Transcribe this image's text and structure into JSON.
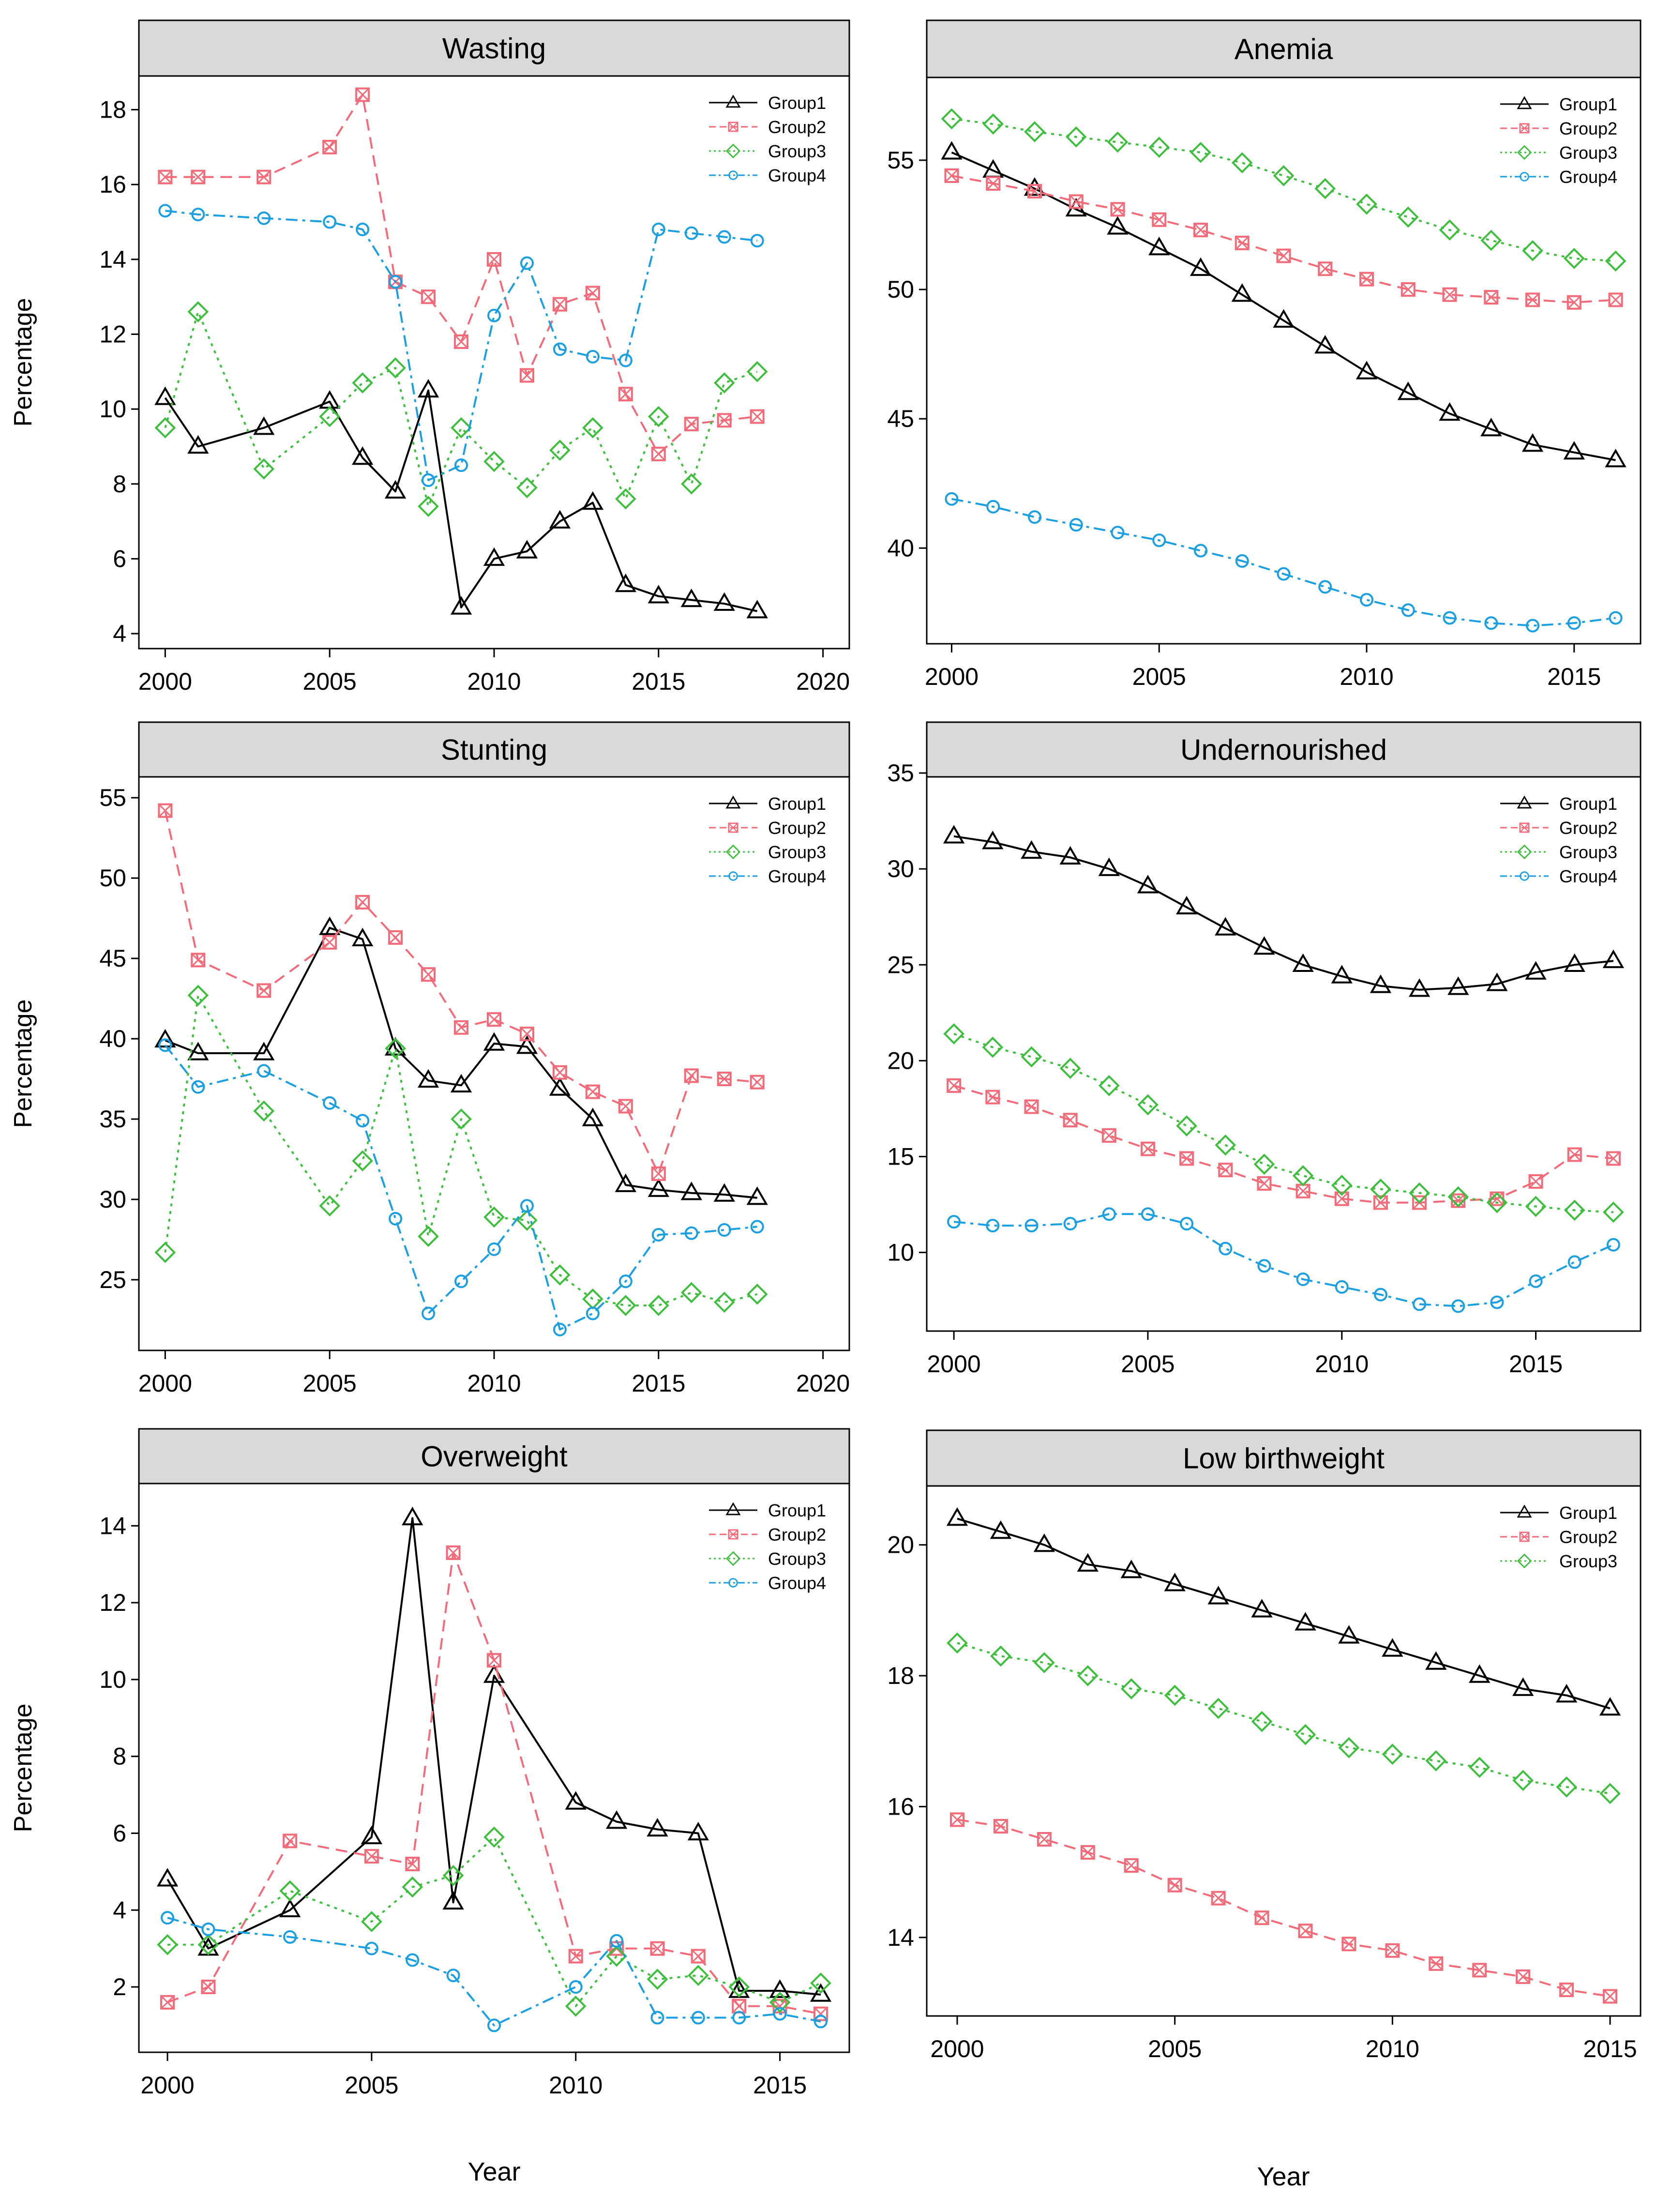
{
  "figure": {
    "y_label": "Percentage",
    "x_label": "Year",
    "series_styles": [
      {
        "name": "Group1",
        "color": "#000000",
        "dash": "",
        "marker": "triangle"
      },
      {
        "name": "Group2",
        "color": "#F36A78",
        "dash": "24,14",
        "marker": "square-x"
      },
      {
        "name": "Group3",
        "color": "#3DBF3D",
        "dash": "6,10",
        "marker": "diamond"
      },
      {
        "name": "Group4",
        "color": "#1A9FE0",
        "dash": "24,10,6,10",
        "marker": "circle"
      }
    ]
  },
  "chart_data": [
    {
      "type": "line",
      "title": "Wasting",
      "xlim": [
        1999.2,
        2020.8
      ],
      "ylim": [
        3.6,
        18.9
      ],
      "xticks": [
        2000,
        2005,
        2010,
        2015,
        2020
      ],
      "yticks": [
        4,
        6,
        8,
        10,
        12,
        14,
        16,
        18
      ],
      "legend": [
        "Group1",
        "Group2",
        "Group3",
        "Group4"
      ],
      "series": [
        {
          "name": "Group1",
          "x": [
            2000,
            2001,
            2003,
            2005,
            2006,
            2007,
            2008,
            2009,
            2010,
            2011,
            2012,
            2013,
            2014,
            2015,
            2016,
            2017,
            2018
          ],
          "y": [
            10.3,
            9.0,
            9.5,
            10.2,
            8.7,
            7.8,
            10.5,
            4.7,
            6.0,
            6.2,
            7.0,
            7.5,
            5.3,
            5.0,
            4.9,
            4.8,
            4.6
          ]
        },
        {
          "name": "Group2",
          "x": [
            2000,
            2001,
            2003,
            2005,
            2006,
            2007,
            2008,
            2009,
            2010,
            2011,
            2012,
            2013,
            2014,
            2015,
            2016,
            2017,
            2018
          ],
          "y": [
            16.2,
            16.2,
            16.2,
            17.0,
            18.4,
            13.4,
            13.0,
            11.8,
            14.0,
            10.9,
            12.8,
            13.1,
            10.4,
            8.8,
            9.6,
            9.7,
            9.8
          ]
        },
        {
          "name": "Group3",
          "x": [
            2000,
            2001,
            2003,
            2005,
            2006,
            2007,
            2008,
            2009,
            2010,
            2011,
            2012,
            2013,
            2014,
            2015,
            2016,
            2017,
            2018
          ],
          "y": [
            9.5,
            12.6,
            8.4,
            9.8,
            10.7,
            11.1,
            7.4,
            9.5,
            8.6,
            7.9,
            8.9,
            9.5,
            7.6,
            9.8,
            8.0,
            10.7,
            11.0
          ]
        },
        {
          "name": "Group4",
          "x": [
            2000,
            2001,
            2003,
            2005,
            2006,
            2007,
            2008,
            2009,
            2010,
            2011,
            2012,
            2013,
            2014,
            2015,
            2016,
            2017,
            2018
          ],
          "y": [
            15.3,
            15.2,
            15.1,
            15.0,
            14.8,
            13.4,
            8.1,
            8.5,
            12.5,
            13.9,
            11.6,
            11.4,
            11.3,
            14.8,
            14.7,
            14.6,
            14.5
          ]
        }
      ]
    },
    {
      "type": "line",
      "title": "Anemia",
      "xlim": [
        1999.4,
        2016.6
      ],
      "ylim": [
        36.3,
        58.2
      ],
      "xticks": [
        2000,
        2005,
        2010,
        2015
      ],
      "yticks": [
        40,
        45,
        50,
        55
      ],
      "legend": [
        "Group1",
        "Group2",
        "Group3",
        "Group4"
      ],
      "series": [
        {
          "name": "Group1",
          "x": [
            2000,
            2001,
            2002,
            2003,
            2004,
            2005,
            2006,
            2007,
            2008,
            2009,
            2010,
            2011,
            2012,
            2013,
            2014,
            2015,
            2016
          ],
          "y": [
            55.3,
            54.6,
            53.9,
            53.1,
            52.4,
            51.6,
            50.8,
            49.8,
            48.8,
            47.8,
            46.8,
            46.0,
            45.2,
            44.6,
            44.0,
            43.7,
            43.4
          ]
        },
        {
          "name": "Group2",
          "x": [
            2000,
            2001,
            2002,
            2003,
            2004,
            2005,
            2006,
            2007,
            2008,
            2009,
            2010,
            2011,
            2012,
            2013,
            2014,
            2015,
            2016
          ],
          "y": [
            54.4,
            54.1,
            53.8,
            53.4,
            53.1,
            52.7,
            52.3,
            51.8,
            51.3,
            50.8,
            50.4,
            50.0,
            49.8,
            49.7,
            49.6,
            49.5,
            49.6
          ]
        },
        {
          "name": "Group3",
          "x": [
            2000,
            2001,
            2002,
            2003,
            2004,
            2005,
            2006,
            2007,
            2008,
            2009,
            2010,
            2011,
            2012,
            2013,
            2014,
            2015,
            2016
          ],
          "y": [
            56.6,
            56.4,
            56.1,
            55.9,
            55.7,
            55.5,
            55.3,
            54.9,
            54.4,
            53.9,
            53.3,
            52.8,
            52.3,
            51.9,
            51.5,
            51.2,
            51.1
          ]
        },
        {
          "name": "Group4",
          "x": [
            2000,
            2001,
            2002,
            2003,
            2004,
            2005,
            2006,
            2007,
            2008,
            2009,
            2010,
            2011,
            2012,
            2013,
            2014,
            2015,
            2016
          ],
          "y": [
            41.9,
            41.6,
            41.2,
            40.9,
            40.6,
            40.3,
            39.9,
            39.5,
            39.0,
            38.5,
            38.0,
            37.6,
            37.3,
            37.1,
            37.0,
            37.1,
            37.3
          ]
        }
      ]
    },
    {
      "type": "line",
      "title": "Stunting",
      "xlim": [
        1999.2,
        2020.8
      ],
      "ylim": [
        20.6,
        56.3
      ],
      "xticks": [
        2000,
        2005,
        2010,
        2015,
        2020
      ],
      "yticks": [
        25,
        30,
        35,
        40,
        45,
        50,
        55
      ],
      "legend": [
        "Group1",
        "Group2",
        "Group3",
        "Group4"
      ],
      "series": [
        {
          "name": "Group1",
          "x": [
            2000,
            2001,
            2003,
            2005,
            2006,
            2007,
            2008,
            2009,
            2010,
            2011,
            2012,
            2013,
            2014,
            2015,
            2016,
            2017,
            2018
          ],
          "y": [
            39.9,
            39.1,
            39.1,
            46.9,
            46.2,
            39.4,
            37.4,
            37.1,
            39.7,
            39.5,
            36.9,
            35.0,
            30.9,
            30.6,
            30.4,
            30.3,
            30.1
          ]
        },
        {
          "name": "Group2",
          "x": [
            2000,
            2001,
            2003,
            2005,
            2006,
            2007,
            2008,
            2009,
            2010,
            2011,
            2012,
            2013,
            2014,
            2015,
            2016,
            2017,
            2018
          ],
          "y": [
            54.2,
            44.9,
            43.0,
            46.0,
            48.5,
            46.3,
            44.0,
            40.7,
            41.2,
            40.3,
            37.9,
            36.7,
            35.8,
            31.6,
            37.7,
            37.5,
            37.3
          ]
        },
        {
          "name": "Group3",
          "x": [
            2000,
            2001,
            2003,
            2005,
            2006,
            2007,
            2008,
            2009,
            2010,
            2011,
            2012,
            2013,
            2014,
            2015,
            2016,
            2017,
            2018
          ],
          "y": [
            26.7,
            42.7,
            35.5,
            29.6,
            32.4,
            39.4,
            27.7,
            35.0,
            28.9,
            28.7,
            25.3,
            23.8,
            23.4,
            23.4,
            24.2,
            23.6,
            24.1
          ]
        },
        {
          "name": "Group4",
          "x": [
            2000,
            2001,
            2003,
            2005,
            2006,
            2007,
            2008,
            2009,
            2010,
            2011,
            2012,
            2013,
            2014,
            2015,
            2016,
            2017,
            2018
          ],
          "y": [
            39.6,
            37.0,
            38.0,
            36.0,
            34.9,
            28.8,
            22.9,
            24.9,
            26.9,
            29.6,
            21.9,
            22.9,
            24.9,
            27.8,
            27.9,
            28.1,
            28.3
          ]
        }
      ]
    },
    {
      "type": "line",
      "title": "Undernourished",
      "xlim": [
        1999.3,
        2017.7
      ],
      "ylim": [
        5.9,
        34.8
      ],
      "xticks": [
        2000,
        2005,
        2010,
        2015
      ],
      "yticks": [
        10,
        15,
        20,
        25,
        30,
        35
      ],
      "legend": [
        "Group1",
        "Group2",
        "Group3",
        "Group4"
      ],
      "series": [
        {
          "name": "Group1",
          "x": [
            2000,
            2001,
            2002,
            2003,
            2004,
            2005,
            2006,
            2007,
            2008,
            2009,
            2010,
            2011,
            2012,
            2013,
            2014,
            2015,
            2016,
            2017
          ],
          "y": [
            31.7,
            31.4,
            30.9,
            30.6,
            30.0,
            29.1,
            28.0,
            26.9,
            25.9,
            25.0,
            24.4,
            23.9,
            23.7,
            23.8,
            24.0,
            24.6,
            25.0,
            25.2
          ]
        },
        {
          "name": "Group2",
          "x": [
            2000,
            2001,
            2002,
            2003,
            2004,
            2005,
            2006,
            2007,
            2008,
            2009,
            2010,
            2011,
            2012,
            2013,
            2014,
            2015,
            2016,
            2017
          ],
          "y": [
            18.7,
            18.1,
            17.6,
            16.9,
            16.1,
            15.4,
            14.9,
            14.3,
            13.6,
            13.2,
            12.8,
            12.6,
            12.6,
            12.7,
            12.8,
            13.7,
            15.1,
            14.9
          ]
        },
        {
          "name": "Group3",
          "x": [
            2000,
            2001,
            2002,
            2003,
            2004,
            2005,
            2006,
            2007,
            2008,
            2009,
            2010,
            2011,
            2012,
            2013,
            2014,
            2015,
            2016,
            2017
          ],
          "y": [
            21.4,
            20.7,
            20.2,
            19.6,
            18.7,
            17.7,
            16.6,
            15.6,
            14.6,
            14.0,
            13.5,
            13.3,
            13.1,
            12.9,
            12.6,
            12.4,
            12.2,
            12.1
          ]
        },
        {
          "name": "Group4",
          "x": [
            2000,
            2001,
            2002,
            2003,
            2004,
            2005,
            2006,
            2007,
            2008,
            2009,
            2010,
            2011,
            2012,
            2013,
            2014,
            2015,
            2016,
            2017
          ],
          "y": [
            11.6,
            11.4,
            11.4,
            11.5,
            12.0,
            12.0,
            11.5,
            10.2,
            9.3,
            8.6,
            8.2,
            7.8,
            7.3,
            7.2,
            7.4,
            8.5,
            9.5,
            10.4
          ]
        }
      ]
    },
    {
      "type": "line",
      "title": "Overweight",
      "xlim": [
        1999.3,
        2016.7
      ],
      "ylim": [
        0.3,
        15.1
      ],
      "xticks": [
        2000,
        2005,
        2010,
        2015
      ],
      "yticks": [
        2,
        4,
        6,
        8,
        10,
        12,
        14
      ],
      "legend": [
        "Group1",
        "Group2",
        "Group3",
        "Group4"
      ],
      "series": [
        {
          "name": "Group1",
          "x": [
            2000,
            2001,
            2003,
            2005,
            2006,
            2007,
            2008,
            2010,
            2011,
            2012,
            2013,
            2014,
            2015,
            2016
          ],
          "y": [
            4.8,
            3.0,
            4.0,
            5.9,
            14.2,
            4.2,
            10.1,
            6.8,
            6.3,
            6.1,
            6.0,
            1.9,
            1.9,
            1.8
          ]
        },
        {
          "name": "Group2",
          "x": [
            2000,
            2001,
            2003,
            2005,
            2006,
            2007,
            2008,
            2010,
            2011,
            2012,
            2013,
            2014,
            2015,
            2016
          ],
          "y": [
            1.6,
            2.0,
            5.8,
            5.4,
            5.2,
            13.3,
            10.5,
            2.8,
            3.0,
            3.0,
            2.8,
            1.5,
            1.5,
            1.3
          ]
        },
        {
          "name": "Group3",
          "x": [
            2000,
            2001,
            2003,
            2005,
            2006,
            2007,
            2008,
            2010,
            2011,
            2012,
            2013,
            2014,
            2015,
            2016
          ],
          "y": [
            3.1,
            3.1,
            4.5,
            3.7,
            4.6,
            4.9,
            5.9,
            1.5,
            2.8,
            2.2,
            2.3,
            2.0,
            1.6,
            2.1
          ]
        },
        {
          "name": "Group4",
          "x": [
            2000,
            2001,
            2003,
            2005,
            2006,
            2007,
            2008,
            2010,
            2011,
            2012,
            2013,
            2014,
            2015,
            2016
          ],
          "y": [
            3.8,
            3.5,
            3.3,
            3.0,
            2.7,
            2.3,
            1.0,
            2.0,
            3.2,
            1.2,
            1.2,
            1.2,
            1.3,
            1.1
          ]
        }
      ]
    },
    {
      "type": "line",
      "title": "Low birthweight",
      "xlim": [
        1999.3,
        2015.7
      ],
      "ylim": [
        12.8,
        20.9
      ],
      "xticks": [
        2000,
        2005,
        2010,
        2015
      ],
      "yticks": [
        14,
        16,
        18,
        20
      ],
      "legend": [
        "Group1",
        "Group2",
        "Group3"
      ],
      "series": [
        {
          "name": "Group1",
          "x": [
            2000,
            2001,
            2002,
            2003,
            2004,
            2005,
            2006,
            2007,
            2008,
            2009,
            2010,
            2011,
            2012,
            2013,
            2014,
            2015
          ],
          "y": [
            20.4,
            20.2,
            20.0,
            19.7,
            19.6,
            19.4,
            19.2,
            19.0,
            18.8,
            18.6,
            18.4,
            18.2,
            18.0,
            17.8,
            17.7,
            17.5
          ]
        },
        {
          "name": "Group2",
          "x": [
            2000,
            2001,
            2002,
            2003,
            2004,
            2005,
            2006,
            2007,
            2008,
            2009,
            2010,
            2011,
            2012,
            2013,
            2014,
            2015
          ],
          "y": [
            15.8,
            15.7,
            15.5,
            15.3,
            15.1,
            14.8,
            14.6,
            14.3,
            14.1,
            13.9,
            13.8,
            13.6,
            13.5,
            13.4,
            13.2,
            13.1
          ]
        },
        {
          "name": "Group3",
          "x": [
            2000,
            2001,
            2002,
            2003,
            2004,
            2005,
            2006,
            2007,
            2008,
            2009,
            2010,
            2011,
            2012,
            2013,
            2014,
            2015
          ],
          "y": [
            18.5,
            18.3,
            18.2,
            18.0,
            17.8,
            17.7,
            17.5,
            17.3,
            17.1,
            16.9,
            16.8,
            16.7,
            16.6,
            16.4,
            16.3,
            16.2
          ]
        }
      ]
    }
  ]
}
